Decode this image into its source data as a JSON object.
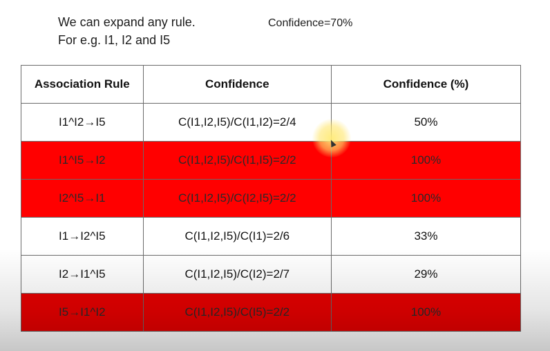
{
  "intro": {
    "line1": "We can expand any rule.",
    "line2": "For e.g. I1, I2 and I5"
  },
  "confidence_threshold": "Confidence=70%",
  "table": {
    "headers": [
      "Association Rule",
      "Confidence",
      "Confidence (%)"
    ],
    "rows": [
      {
        "rule": "I1^I2→I5",
        "formula": "C(I1,I2,I5)/C(I1,I2)=2/4",
        "percent": "50%",
        "highlighted": false
      },
      {
        "rule": "I1^I5→I2",
        "formula": "C(I1,I2,I5)/C(I1,I5)=2/2",
        "percent": "100%",
        "highlighted": true
      },
      {
        "rule": "I2^I5→I1",
        "formula": "C(I1,I2,I5)/C(I2,I5)=2/2",
        "percent": "100%",
        "highlighted": true
      },
      {
        "rule": "I1→I2^I5",
        "formula": "C(I1,I2,I5)/C(I1)=2/6",
        "percent": "33%",
        "highlighted": false
      },
      {
        "rule": "I2→I1^I5",
        "formula": "C(I1,I2,I5)/C(I2)=2/7",
        "percent": "29%",
        "highlighted": false
      },
      {
        "rule": "I5→I1^I2",
        "formula": "C(I1,I2,I5)/C(I5)=2/2",
        "percent": "100%",
        "highlighted": true
      }
    ]
  },
  "colors": {
    "highlight": "#ff0000",
    "border": "#6a6a6a"
  }
}
